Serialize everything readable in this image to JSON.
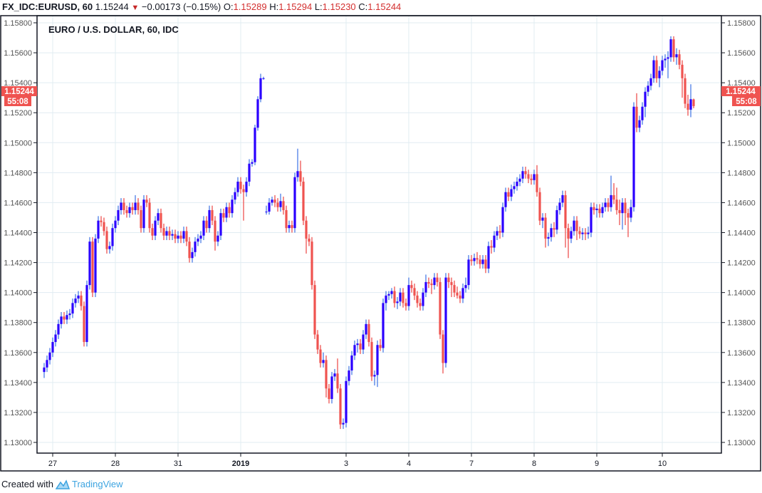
{
  "header": {
    "symbol": "FX_IDC:EURUSD, 60",
    "last": "1.15244",
    "change": "−0.00173 (−0.15%)",
    "o_label": "O:",
    "o": "1.15289",
    "h_label": "H:",
    "h": "1.15294",
    "l_label": "L:",
    "l": "1.15230",
    "c_label": "C:",
    "c": "1.15244",
    "direction_icon": "triangle-down-icon"
  },
  "footer": {
    "created_with": "Created with",
    "brand": "TradingView",
    "logo_icon": "tradingview-logo-icon"
  },
  "colors": {
    "up_body": "#2a00ff",
    "up_wick": "#4a7de6",
    "down": "#ef5350",
    "grid": "#e1ecf2",
    "price_label_bg": "#ef5350"
  },
  "chart_data": {
    "type": "candlestick",
    "title": "EURO / U.S. DOLLAR, 60, IDC",
    "interval": "60",
    "ylim": [
      1.13,
      1.158
    ],
    "yticks": [
      "1.15800",
      "1.15600",
      "1.15400",
      "1.15200",
      "1.15000",
      "1.14800",
      "1.14600",
      "1.14400",
      "1.14200",
      "1.14000",
      "1.13800",
      "1.13600",
      "1.13400",
      "1.13200",
      "1.13000"
    ],
    "xticks": [
      "27",
      "28",
      "31",
      "2019",
      "3",
      "4",
      "7",
      "8",
      "9",
      "10"
    ],
    "grid": true,
    "y_axis": "both sides",
    "last_price_label": "1.15244",
    "countdown_label": "55:08",
    "candles_ohlc": [
      [
        1.1347,
        1.1353,
        1.1343,
        1.135
      ],
      [
        1.135,
        1.1358,
        1.1347,
        1.1355
      ],
      [
        1.1355,
        1.1363,
        1.1352,
        1.136
      ],
      [
        1.136,
        1.137,
        1.1357,
        1.1367
      ],
      [
        1.1367,
        1.1375,
        1.1364,
        1.1372
      ],
      [
        1.1372,
        1.1382,
        1.1369,
        1.1379
      ],
      [
        1.1379,
        1.1387,
        1.1376,
        1.1384
      ],
      [
        1.1384,
        1.1387,
        1.1379,
        1.1382
      ],
      [
        1.1382,
        1.1388,
        1.1379,
        1.1385
      ],
      [
        1.1385,
        1.1389,
        1.1382,
        1.1386
      ],
      [
        1.1386,
        1.1396,
        1.1383,
        1.1393
      ],
      [
        1.1393,
        1.1399,
        1.139,
        1.1396
      ],
      [
        1.1396,
        1.1401,
        1.1393,
        1.1398
      ],
      [
        1.1398,
        1.1401,
        1.1388,
        1.1391
      ],
      [
        1.1391,
        1.1394,
        1.1364,
        1.1367
      ],
      [
        1.1367,
        1.1408,
        1.1364,
        1.1405
      ],
      [
        1.1405,
        1.1437,
        1.1402,
        1.1434
      ],
      [
        1.1434,
        1.1437,
        1.1397,
        1.14
      ],
      [
        1.14,
        1.1439,
        1.1397,
        1.1436
      ],
      [
        1.1436,
        1.1451,
        1.1433,
        1.1448
      ],
      [
        1.1448,
        1.1451,
        1.1444,
        1.1447
      ],
      [
        1.1447,
        1.145,
        1.1438,
        1.1441
      ],
      [
        1.1441,
        1.1444,
        1.1426,
        1.1429
      ],
      [
        1.1429,
        1.1434,
        1.1426,
        1.1431
      ],
      [
        1.1431,
        1.1446,
        1.1428,
        1.1443
      ],
      [
        1.1443,
        1.1451,
        1.144,
        1.1448
      ],
      [
        1.1448,
        1.1458,
        1.1445,
        1.1455
      ],
      [
        1.1455,
        1.1463,
        1.1452,
        1.146
      ],
      [
        1.146,
        1.1463,
        1.1452,
        1.1455
      ],
      [
        1.1455,
        1.1458,
        1.145,
        1.1453
      ],
      [
        1.1453,
        1.146,
        1.145,
        1.1457
      ],
      [
        1.1457,
        1.146,
        1.1452,
        1.1455
      ],
      [
        1.1455,
        1.1465,
        1.1452,
        1.146
      ],
      [
        1.146,
        1.1463,
        1.1452,
        1.1455
      ],
      [
        1.1455,
        1.1458,
        1.144,
        1.1443
      ],
      [
        1.1443,
        1.1465,
        1.144,
        1.1462
      ],
      [
        1.1462,
        1.1465,
        1.1457,
        1.146
      ],
      [
        1.146,
        1.1463,
        1.144,
        1.1443
      ],
      [
        1.1443,
        1.1446,
        1.1435,
        1.1438
      ],
      [
        1.1438,
        1.1451,
        1.1435,
        1.1448
      ],
      [
        1.1448,
        1.1456,
        1.1445,
        1.1453
      ],
      [
        1.1453,
        1.1456,
        1.144,
        1.1443
      ],
      [
        1.1443,
        1.1446,
        1.1435,
        1.1438
      ],
      [
        1.1438,
        1.1444,
        1.1435,
        1.1441
      ],
      [
        1.1441,
        1.1444,
        1.1435,
        1.1438
      ],
      [
        1.1438,
        1.1442,
        1.1435,
        1.1439
      ],
      [
        1.1439,
        1.1442,
        1.1433,
        1.1436
      ],
      [
        1.1436,
        1.1441,
        1.1433,
        1.1438
      ],
      [
        1.1438,
        1.1441,
        1.1433,
        1.1436
      ],
      [
        1.1436,
        1.1444,
        1.1433,
        1.1441
      ],
      [
        1.1441,
        1.1444,
        1.1431,
        1.1434
      ],
      [
        1.1434,
        1.1437,
        1.142,
        1.1423
      ],
      [
        1.1423,
        1.143,
        1.142,
        1.1427
      ],
      [
        1.1427,
        1.1437,
        1.1424,
        1.1434
      ],
      [
        1.1434,
        1.1439,
        1.1431,
        1.1436
      ],
      [
        1.1436,
        1.1441,
        1.1433,
        1.1438
      ],
      [
        1.1438,
        1.1451,
        1.1435,
        1.1448
      ],
      [
        1.1448,
        1.1451,
        1.144,
        1.1443
      ],
      [
        1.1443,
        1.1458,
        1.144,
        1.1455
      ],
      [
        1.1455,
        1.1458,
        1.1445,
        1.1448
      ],
      [
        1.1448,
        1.1451,
        1.1428,
        1.1434
      ],
      [
        1.1434,
        1.1441,
        1.1431,
        1.1438
      ],
      [
        1.1438,
        1.1456,
        1.1435,
        1.1453
      ],
      [
        1.1453,
        1.1456,
        1.1447,
        1.145
      ],
      [
        1.145,
        1.146,
        1.1447,
        1.1457
      ],
      [
        1.1457,
        1.146,
        1.145,
        1.1453
      ],
      [
        1.1453,
        1.1465,
        1.145,
        1.1462
      ],
      [
        1.1462,
        1.147,
        1.1459,
        1.1467
      ],
      [
        1.1467,
        1.1477,
        1.1464,
        1.1474
      ],
      [
        1.1474,
        1.1477,
        1.1466,
        1.1469
      ],
      [
        1.1469,
        1.1472,
        1.1448,
        1.1467
      ],
      [
        1.1467,
        1.1477,
        1.1464,
        1.1474
      ],
      [
        1.1474,
        1.1489,
        1.1471,
        1.1486
      ],
      [
        1.1486,
        1.1489,
        1.1484,
        1.1487
      ],
      [
        1.1487,
        1.1512,
        1.1485,
        1.151
      ],
      [
        1.151,
        1.1531,
        1.1508,
        1.1529
      ],
      [
        1.1529,
        1.1546,
        1.1527,
        1.1543
      ],
      [
        1.1543,
        1.1544,
        1.1542,
        1.1543
      ],
      [
        1.1454,
        1.1458,
        1.1452,
        1.1454
      ],
      [
        1.1454,
        1.1463,
        1.1452,
        1.146
      ],
      [
        1.146,
        1.1464,
        1.1458,
        1.1462
      ],
      [
        1.1462,
        1.1465,
        1.1457,
        1.146
      ],
      [
        1.146,
        1.1463,
        1.1454,
        1.1457
      ],
      [
        1.1457,
        1.1466,
        1.1454,
        1.1461
      ],
      [
        1.1461,
        1.1464,
        1.1452,
        1.1455
      ],
      [
        1.1455,
        1.1458,
        1.144,
        1.1443
      ],
      [
        1.1443,
        1.1448,
        1.144,
        1.1445
      ],
      [
        1.1445,
        1.1448,
        1.144,
        1.1443
      ],
      [
        1.1443,
        1.148,
        1.144,
        1.1477
      ],
      [
        1.1477,
        1.1496,
        1.1474,
        1.1481
      ],
      [
        1.1481,
        1.1488,
        1.1471,
        1.1474
      ],
      [
        1.1474,
        1.1477,
        1.1445,
        1.1448
      ],
      [
        1.1448,
        1.1451,
        1.1426,
        1.1436
      ],
      [
        1.1436,
        1.1439,
        1.1431,
        1.1434
      ],
      [
        1.1434,
        1.1437,
        1.1402,
        1.1405
      ],
      [
        1.1405,
        1.1408,
        1.1369,
        1.1372
      ],
      [
        1.1372,
        1.1375,
        1.1359,
        1.1362
      ],
      [
        1.1362,
        1.1365,
        1.135,
        1.1353
      ],
      [
        1.1353,
        1.136,
        1.135,
        1.1355
      ],
      [
        1.1355,
        1.1358,
        1.133,
        1.1336
      ],
      [
        1.1336,
        1.1339,
        1.1326,
        1.1329
      ],
      [
        1.1329,
        1.1347,
        1.1326,
        1.1344
      ],
      [
        1.1344,
        1.1349,
        1.1341,
        1.1346
      ],
      [
        1.1346,
        1.1356,
        1.1333,
        1.1336
      ],
      [
        1.1336,
        1.1339,
        1.1309,
        1.1312
      ],
      [
        1.1312,
        1.1316,
        1.1309,
        1.1313
      ],
      [
        1.1313,
        1.1344,
        1.131,
        1.1341
      ],
      [
        1.1341,
        1.1351,
        1.1338,
        1.1348
      ],
      [
        1.1348,
        1.1361,
        1.1345,
        1.1358
      ],
      [
        1.1358,
        1.1368,
        1.1355,
        1.1365
      ],
      [
        1.1365,
        1.1369,
        1.136,
        1.1366
      ],
      [
        1.1366,
        1.1369,
        1.1359,
        1.1362
      ],
      [
        1.1362,
        1.1375,
        1.1359,
        1.1372
      ],
      [
        1.1372,
        1.1382,
        1.1369,
        1.1379
      ],
      [
        1.1379,
        1.1382,
        1.1364,
        1.1367
      ],
      [
        1.1367,
        1.137,
        1.1341,
        1.1344
      ],
      [
        1.1344,
        1.1348,
        1.1338,
        1.1345
      ],
      [
        1.1345,
        1.1368,
        1.1337,
        1.1365
      ],
      [
        1.1365,
        1.1369,
        1.1361,
        1.1363
      ],
      [
        1.1363,
        1.1396,
        1.136,
        1.1393
      ],
      [
        1.1393,
        1.1401,
        1.1388,
        1.1398
      ],
      [
        1.1398,
        1.1401,
        1.1395,
        1.1399
      ],
      [
        1.1399,
        1.1403,
        1.1396,
        1.1401
      ],
      [
        1.1401,
        1.1404,
        1.139,
        1.1393
      ],
      [
        1.1393,
        1.1397,
        1.1389,
        1.1394
      ],
      [
        1.1394,
        1.1403,
        1.1391,
        1.14
      ],
      [
        1.14,
        1.1403,
        1.139,
        1.1393
      ],
      [
        1.1393,
        1.1396,
        1.1388,
        1.1391
      ],
      [
        1.1391,
        1.141,
        1.1388,
        1.1405
      ],
      [
        1.1405,
        1.1408,
        1.14,
        1.1403
      ],
      [
        1.1403,
        1.1406,
        1.1395,
        1.1398
      ],
      [
        1.1398,
        1.1401,
        1.139,
        1.1393
      ],
      [
        1.1393,
        1.1396,
        1.1388,
        1.1391
      ],
      [
        1.1391,
        1.1403,
        1.1388,
        1.14
      ],
      [
        1.14,
        1.1412,
        1.1397,
        1.1407
      ],
      [
        1.1407,
        1.141,
        1.1403,
        1.1406
      ],
      [
        1.1406,
        1.1409,
        1.1399,
        1.1405
      ],
      [
        1.1405,
        1.1413,
        1.1402,
        1.141
      ],
      [
        1.141,
        1.1413,
        1.1404,
        1.1407
      ],
      [
        1.1407,
        1.141,
        1.1369,
        1.1372
      ],
      [
        1.1372,
        1.1375,
        1.1346,
        1.1353
      ],
      [
        1.1353,
        1.1413,
        1.135,
        1.141
      ],
      [
        1.141,
        1.1413,
        1.1403,
        1.1407
      ],
      [
        1.1407,
        1.141,
        1.1397,
        1.1405
      ],
      [
        1.1405,
        1.1408,
        1.1397,
        1.14
      ],
      [
        1.14,
        1.1404,
        1.1396,
        1.1398
      ],
      [
        1.1398,
        1.1401,
        1.1393,
        1.1396
      ],
      [
        1.1396,
        1.1406,
        1.1393,
        1.1403
      ],
      [
        1.1403,
        1.141,
        1.14,
        1.1405
      ],
      [
        1.1405,
        1.1425,
        1.1402,
        1.1422
      ],
      [
        1.1422,
        1.1425,
        1.1418,
        1.1421
      ],
      [
        1.1421,
        1.1426,
        1.1418,
        1.1423
      ],
      [
        1.1423,
        1.1427,
        1.1419,
        1.1422
      ],
      [
        1.1422,
        1.1425,
        1.1416,
        1.1419
      ],
      [
        1.1419,
        1.1425,
        1.1416,
        1.1422
      ],
      [
        1.1422,
        1.1425,
        1.1413,
        1.1416
      ],
      [
        1.1416,
        1.1434,
        1.1413,
        1.1431
      ],
      [
        1.1431,
        1.1435,
        1.1426,
        1.143
      ],
      [
        1.143,
        1.1441,
        1.1427,
        1.1438
      ],
      [
        1.1438,
        1.1444,
        1.1435,
        1.1441
      ],
      [
        1.1441,
        1.1445,
        1.1436,
        1.144
      ],
      [
        1.144,
        1.146,
        1.1437,
        1.1457
      ],
      [
        1.1457,
        1.147,
        1.1454,
        1.1467
      ],
      [
        1.1467,
        1.147,
        1.1461,
        1.1464
      ],
      [
        1.1464,
        1.1472,
        1.1461,
        1.1469
      ],
      [
        1.1469,
        1.1474,
        1.1466,
        1.1471
      ],
      [
        1.1471,
        1.1477,
        1.1468,
        1.1474
      ],
      [
        1.1474,
        1.1479,
        1.1471,
        1.1476
      ],
      [
        1.1476,
        1.1484,
        1.1473,
        1.1481
      ],
      [
        1.1481,
        1.1484,
        1.1476,
        1.1479
      ],
      [
        1.1479,
        1.1482,
        1.1473,
        1.1476
      ],
      [
        1.1476,
        1.1479,
        1.1472,
        1.1475
      ],
      [
        1.1475,
        1.1482,
        1.1472,
        1.1479
      ],
      [
        1.1479,
        1.1485,
        1.1464,
        1.1467
      ],
      [
        1.1467,
        1.147,
        1.1445,
        1.1448
      ],
      [
        1.1448,
        1.1453,
        1.1443,
        1.145
      ],
      [
        1.145,
        1.1453,
        1.143,
        1.1436
      ],
      [
        1.1436,
        1.144,
        1.1431,
        1.1437
      ],
      [
        1.1437,
        1.1446,
        1.1434,
        1.1443
      ],
      [
        1.1443,
        1.1447,
        1.1437,
        1.1442
      ],
      [
        1.1442,
        1.1458,
        1.1439,
        1.1455
      ],
      [
        1.1455,
        1.1463,
        1.1452,
        1.146
      ],
      [
        1.146,
        1.1468,
        1.1457,
        1.1465
      ],
      [
        1.1465,
        1.1468,
        1.143,
        1.1443
      ],
      [
        1.1443,
        1.1446,
        1.1423,
        1.1436
      ],
      [
        1.1436,
        1.1444,
        1.1433,
        1.1441
      ],
      [
        1.1441,
        1.1451,
        1.1438,
        1.1448
      ],
      [
        1.1448,
        1.1451,
        1.1435,
        1.1441
      ],
      [
        1.1441,
        1.1444,
        1.1436,
        1.1439
      ],
      [
        1.1439,
        1.1443,
        1.1435,
        1.144
      ],
      [
        1.144,
        1.1443,
        1.1435,
        1.1439
      ],
      [
        1.1439,
        1.1444,
        1.1436,
        1.144
      ],
      [
        1.144,
        1.146,
        1.1437,
        1.1457
      ],
      [
        1.1457,
        1.146,
        1.1452,
        1.1455
      ],
      [
        1.1455,
        1.1459,
        1.145,
        1.1456
      ],
      [
        1.1456,
        1.1459,
        1.145,
        1.1453
      ],
      [
        1.1453,
        1.146,
        1.145,
        1.1457
      ],
      [
        1.1457,
        1.1463,
        1.1454,
        1.146
      ],
      [
        1.146,
        1.1463,
        1.1454,
        1.1457
      ],
      [
        1.1457,
        1.1478,
        1.1454,
        1.1465
      ],
      [
        1.1465,
        1.1473,
        1.1459,
        1.1462
      ],
      [
        1.1462,
        1.147,
        1.1452,
        1.1455
      ],
      [
        1.1455,
        1.1462,
        1.1445,
        1.1453
      ],
      [
        1.1453,
        1.1463,
        1.1442,
        1.146
      ],
      [
        1.146,
        1.1463,
        1.1445,
        1.1453
      ],
      [
        1.1453,
        1.1456,
        1.1437,
        1.145
      ],
      [
        1.145,
        1.1462,
        1.1447,
        1.1457
      ],
      [
        1.1457,
        1.1527,
        1.1454,
        1.1524
      ],
      [
        1.1524,
        1.1533,
        1.1507,
        1.151
      ],
      [
        1.151,
        1.1518,
        1.1507,
        1.1515
      ],
      [
        1.1515,
        1.1527,
        1.1512,
        1.1524
      ],
      [
        1.1524,
        1.1537,
        1.1517,
        1.1534
      ],
      [
        1.1534,
        1.1541,
        1.1531,
        1.1538
      ],
      [
        1.1538,
        1.1546,
        1.1535,
        1.1543
      ],
      [
        1.1543,
        1.1558,
        1.154,
        1.1555
      ],
      [
        1.1555,
        1.1558,
        1.154,
        1.1543
      ],
      [
        1.1543,
        1.1551,
        1.1537,
        1.1548
      ],
      [
        1.1548,
        1.1558,
        1.1545,
        1.1555
      ],
      [
        1.1555,
        1.1559,
        1.155,
        1.1556
      ],
      [
        1.1556,
        1.1561,
        1.1543,
        1.1557
      ],
      [
        1.1557,
        1.1571,
        1.1554,
        1.1569
      ],
      [
        1.1569,
        1.1571,
        1.1554,
        1.1557
      ],
      [
        1.1557,
        1.1563,
        1.1552,
        1.1559
      ],
      [
        1.1559,
        1.1562,
        1.1549,
        1.1552
      ],
      [
        1.1552,
        1.1555,
        1.153,
        1.1543
      ],
      [
        1.1543,
        1.1546,
        1.1523,
        1.1526
      ],
      [
        1.1526,
        1.1532,
        1.1518,
        1.1522
      ],
      [
        1.1522,
        1.1539,
        1.1517,
        1.1529
      ],
      [
        1.15289,
        1.15294,
        1.1523,
        1.15244
      ]
    ]
  }
}
